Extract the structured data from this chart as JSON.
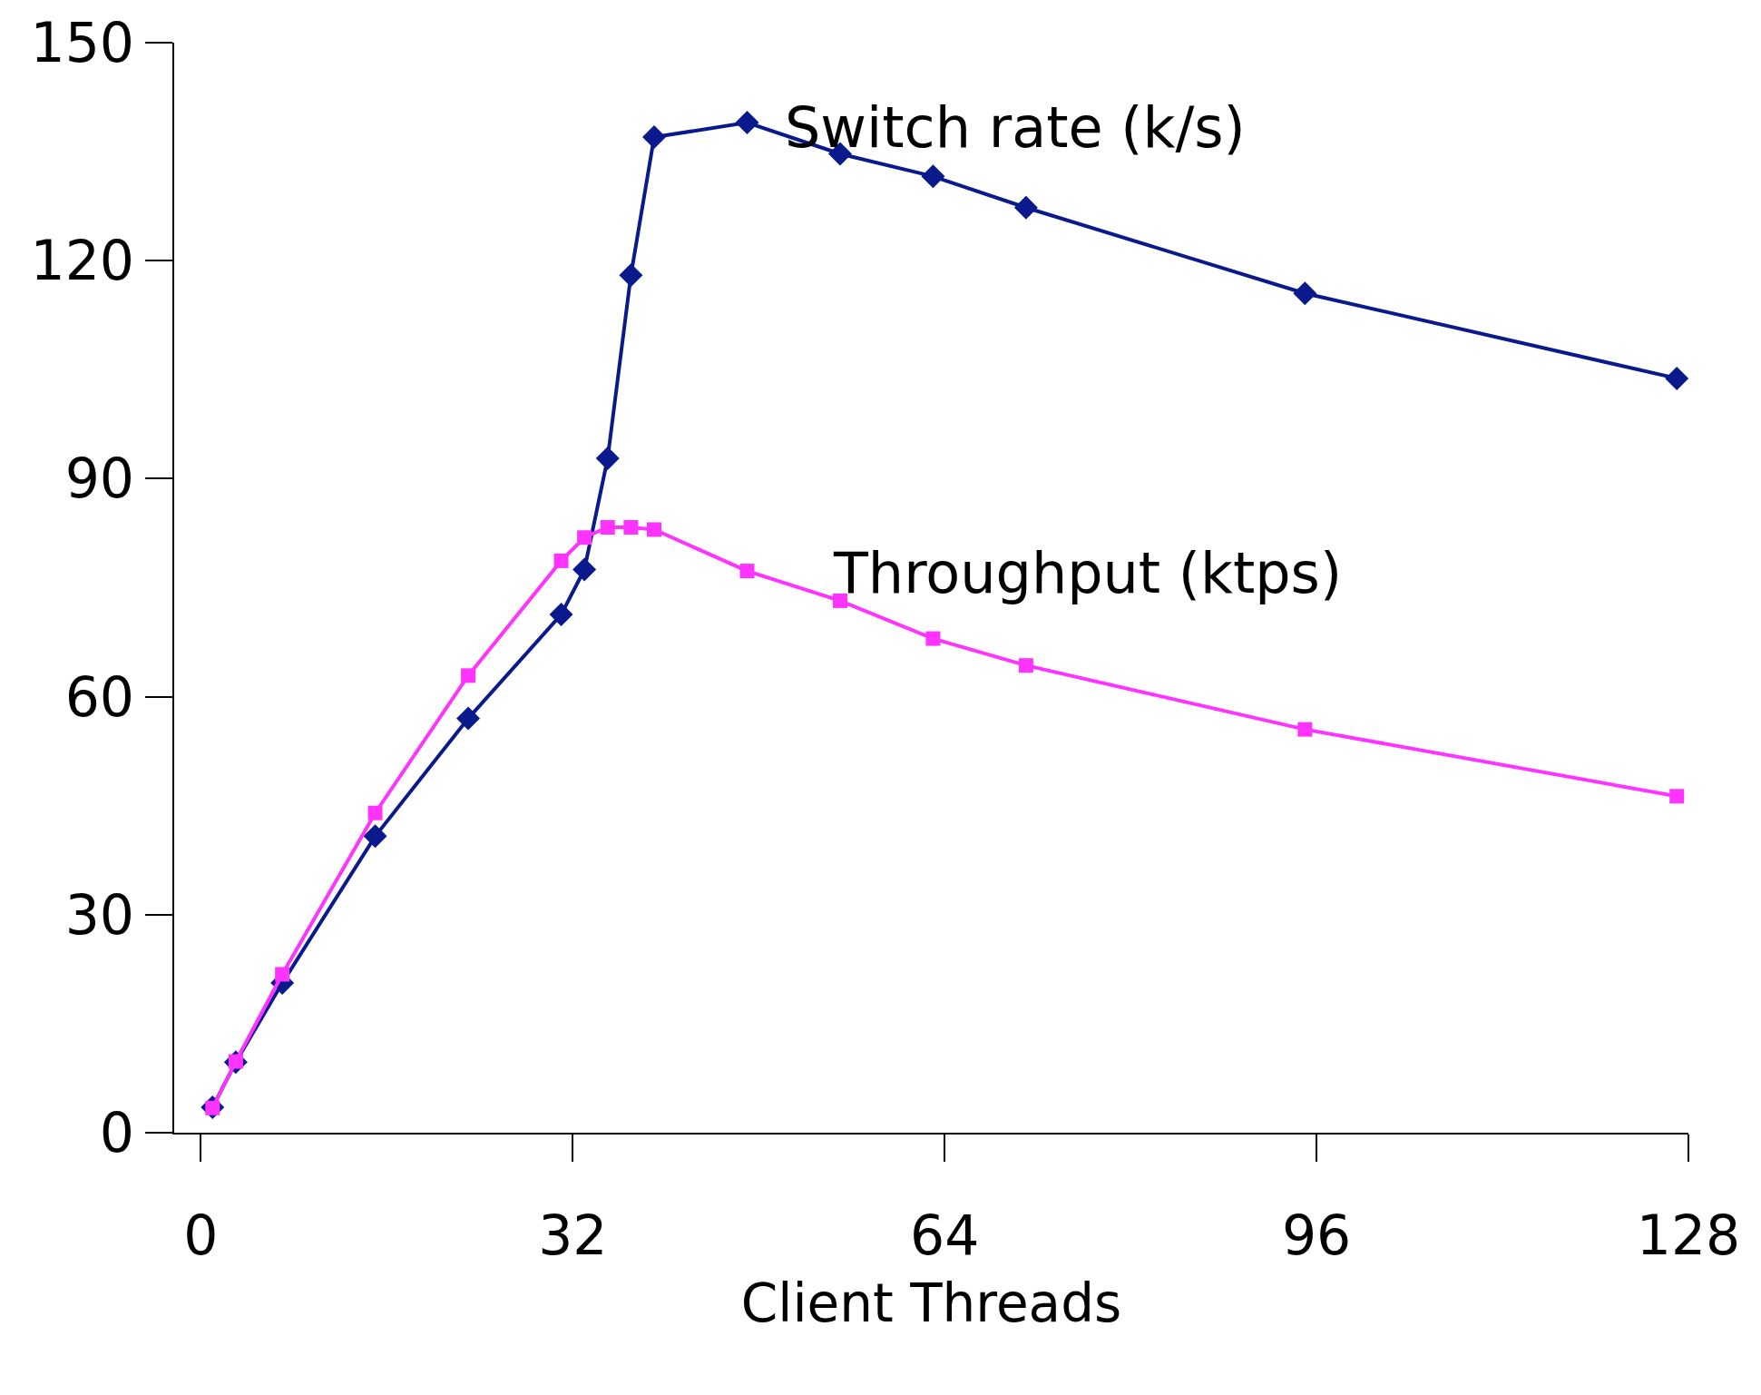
{
  "chart_data": {
    "type": "line",
    "xlabel": "Client Threads",
    "series": [
      {
        "name": "Switch rate (k/s)",
        "color": "#0a1a8c",
        "marker": "diamond",
        "x": [
          1,
          3,
          7,
          15,
          23,
          31,
          33,
          35,
          37,
          39,
          47,
          55,
          63,
          71,
          95,
          127
        ],
        "values": [
          3.5,
          9.7,
          20.6,
          40.8,
          57,
          71.3,
          77.5,
          92.8,
          118,
          137,
          139,
          134.7,
          131.6,
          127.3,
          115.5,
          103.8
        ]
      },
      {
        "name": "Throughput (ktps)",
        "color": "#ff33ff",
        "marker": "square",
        "x": [
          1,
          3,
          7,
          15,
          23,
          31,
          33,
          35,
          37,
          39,
          47,
          55,
          63,
          71,
          95,
          127
        ],
        "values": [
          3.4,
          9.8,
          21.8,
          44,
          62.9,
          78.7,
          81.9,
          83.3,
          83.3,
          83,
          77.3,
          73.2,
          68,
          64.3,
          55.5,
          46.3
        ]
      }
    ],
    "xlim": [
      -2.3,
      128
    ],
    "xticks": [
      0,
      32,
      64,
      96,
      128
    ],
    "ylim": [
      0,
      150
    ],
    "yticks": [
      0,
      30,
      60,
      90,
      120,
      150
    ],
    "line_style": "solid"
  }
}
